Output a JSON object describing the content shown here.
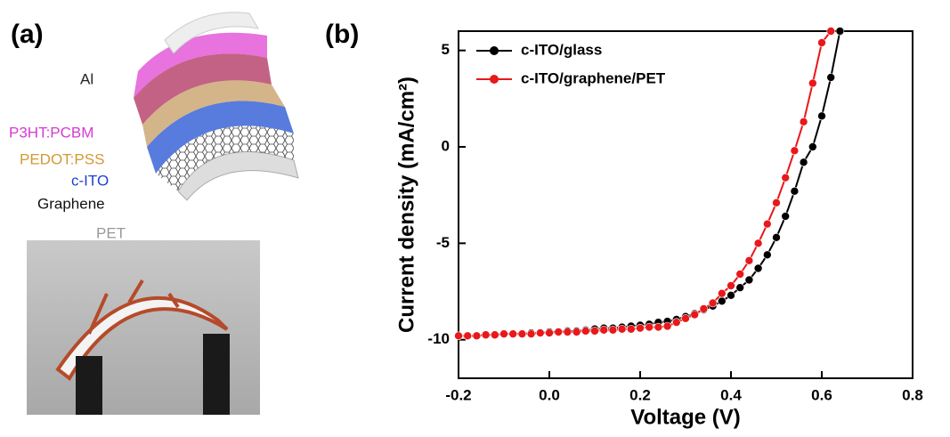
{
  "panel_a": {
    "label": "(a)",
    "layers": [
      "Al",
      "P3HT:PCBM",
      "PEDOT:PSS",
      "c-ITO",
      "Graphene",
      "PET"
    ]
  },
  "chart_data": {
    "type": "line",
    "panel_label": "(b)",
    "x_label": "Voltage (V)",
    "y_label": "Current density (mA/cm²)",
    "xlim": [
      -0.2,
      0.8
    ],
    "xticks": [
      -0.2,
      {
        "value": 0,
        "label": "0.0"
      },
      0.2,
      0.4,
      0.6,
      0.8
    ],
    "ylim": [
      -12,
      6
    ],
    "yticks": [
      -10,
      -5,
      0,
      5
    ],
    "legend": "upper left",
    "series": [
      {
        "name": "c-ITO/glass",
        "color": "#000000",
        "x": [
          -0.18,
          -0.16,
          -0.14,
          -0.12,
          -0.1,
          -0.08,
          -0.06,
          -0.04,
          -0.02,
          0,
          0.02,
          0.04,
          0.06,
          0.08,
          0.1,
          0.12,
          0.14,
          0.16,
          0.18,
          0.2,
          0.22,
          0.24,
          0.26,
          0.28,
          0.3,
          0.32,
          0.34,
          0.36,
          0.38,
          0.4,
          0.42,
          0.44,
          0.46,
          0.48,
          0.5,
          0.52,
          0.54,
          0.56,
          0.58,
          0.6,
          0.62,
          0.64
        ],
        "values": [
          -9.8,
          -9.8,
          -9.75,
          -9.75,
          -9.7,
          -9.7,
          -9.7,
          -9.65,
          -9.65,
          -9.6,
          -9.6,
          -9.55,
          -9.55,
          -9.5,
          -9.45,
          -9.4,
          -9.4,
          -9.35,
          -9.3,
          -9.25,
          -9.2,
          -9.1,
          -9.05,
          -8.95,
          -8.8,
          -8.65,
          -8.45,
          -8.25,
          -8.0,
          -7.7,
          -7.3,
          -6.9,
          -6.3,
          -5.6,
          -4.7,
          -3.6,
          -2.3,
          -0.8,
          0.0,
          1.6,
          3.6,
          6.0
        ]
      },
      {
        "name": "c-ITO/graphene/PET",
        "color": "#e8181b",
        "x": [
          -0.2,
          -0.18,
          -0.16,
          -0.14,
          -0.12,
          -0.1,
          -0.08,
          -0.06,
          -0.04,
          -0.02,
          0,
          0.02,
          0.04,
          0.06,
          0.08,
          0.1,
          0.12,
          0.14,
          0.16,
          0.18,
          0.2,
          0.22,
          0.24,
          0.26,
          0.28,
          0.3,
          0.32,
          0.34,
          0.36,
          0.38,
          0.4,
          0.42,
          0.44,
          0.46,
          0.48,
          0.5,
          0.52,
          0.54,
          0.56,
          0.58,
          0.6,
          0.62
        ],
        "values": [
          -9.8,
          -9.8,
          -9.8,
          -9.75,
          -9.75,
          -9.7,
          -9.7,
          -9.7,
          -9.7,
          -9.65,
          -9.65,
          -9.6,
          -9.6,
          -9.6,
          -9.55,
          -9.55,
          -9.5,
          -9.5,
          -9.45,
          -9.45,
          -9.4,
          -9.35,
          -9.35,
          -9.3,
          -9.1,
          -8.9,
          -8.7,
          -8.4,
          -8.1,
          -7.6,
          -7.2,
          -6.6,
          -5.9,
          -5.0,
          -4.0,
          -2.9,
          -1.6,
          -0.2,
          1.3,
          3.3,
          5.4,
          6.0
        ]
      }
    ]
  }
}
